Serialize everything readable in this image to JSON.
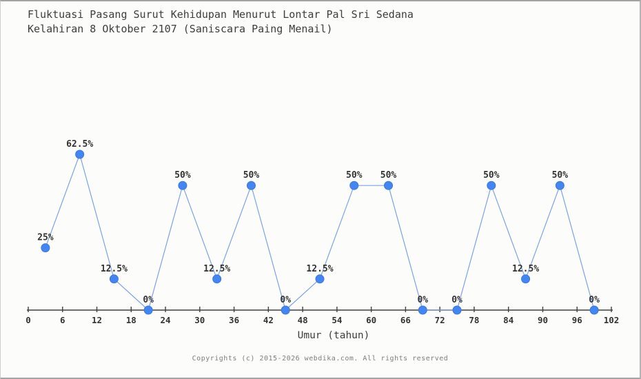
{
  "page": {
    "title_line1": "Fluktuasi Pasang Surut Kehidupan Menurut Lontar Pal Sri Sedana",
    "title_line2": "Kelahiran 8 Oktober 2107 (Saniscara Paing Menail)",
    "footer": "Copyrights (c) 2015-2026 webdika.com. All rights reserved"
  },
  "colors": {
    "background": "#fcfcfa",
    "border": "#a3a3a3",
    "title_text": "#3d3d3d",
    "label_text": "#333333",
    "axis": "#3f3f3f",
    "tick_text": "#333333",
    "line": "#7aa3e6",
    "point_fill": "#4285f4",
    "point_stroke": "#3b78d8",
    "footer_text": "#7e7e7e"
  },
  "chart_data": {
    "type": "line",
    "title": "Fluktuasi Pasang Surut Kehidupan Menurut Lontar Pal Sri Sedana Kelahiran 8 Oktober 2107 (Saniscara Paing Menail)",
    "x": [
      3,
      9,
      15,
      21,
      27,
      33,
      39,
      45,
      51,
      57,
      63,
      69,
      75,
      81,
      87,
      93,
      99
    ],
    "values": [
      25,
      62.5,
      12.5,
      0,
      50,
      12.5,
      50,
      0,
      12.5,
      50,
      50,
      0,
      0,
      50,
      12.5,
      50,
      0
    ],
    "point_labels": [
      "25%",
      "62.5%",
      "12.5%",
      "0%",
      "50%",
      "12.5%",
      "50%",
      "0%",
      "12.5%",
      "50%",
      "50%",
      "0%",
      "0%",
      "50%",
      "12.5%",
      "50%",
      "0%"
    ],
    "xlabel": "Umur (tahun)",
    "ylabel": "",
    "x_ticks": [
      0,
      6,
      12,
      18,
      24,
      30,
      36,
      42,
      48,
      54,
      60,
      66,
      72,
      78,
      84,
      90,
      96,
      102
    ],
    "xlim": [
      0,
      102
    ],
    "ylim": [
      0,
      68
    ],
    "grid": false,
    "legend": false,
    "y_axis_shown": false
  }
}
